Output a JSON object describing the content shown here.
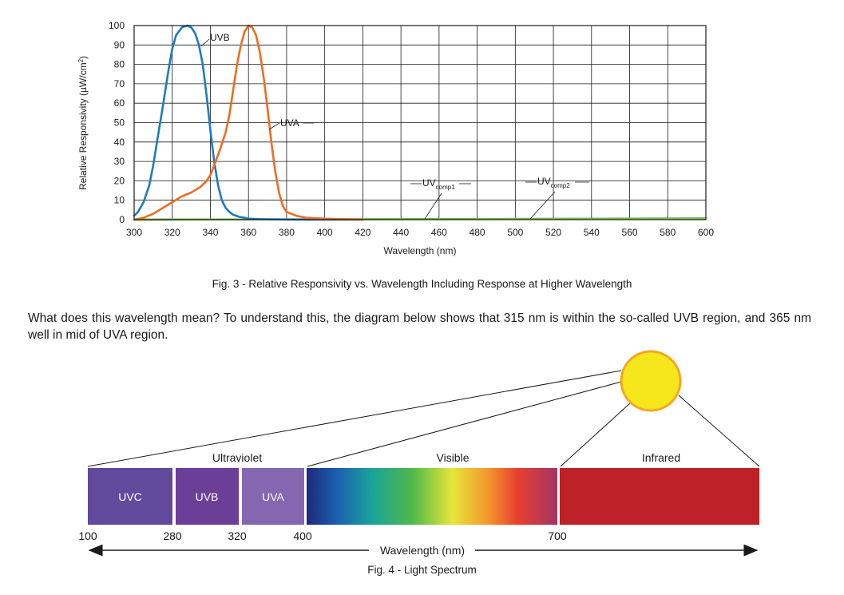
{
  "chart_data": {
    "type": "line",
    "xlabel": "Wavelength (nm)",
    "ylabel_prefix": "Relative Responsivity (µW/cm",
    "ylabel_sup": "2",
    "ylabel_suffix": ")",
    "xlim": [
      300,
      600
    ],
    "ylim": [
      0,
      100
    ],
    "x_ticks": [
      300,
      320,
      340,
      360,
      380,
      400,
      420,
      440,
      460,
      480,
      500,
      520,
      540,
      560,
      580,
      600
    ],
    "y_ticks": [
      0,
      10,
      20,
      30,
      40,
      50,
      60,
      70,
      80,
      90,
      100
    ],
    "grid": true,
    "series": [
      {
        "name": "UVB",
        "color": "#1e7bc1",
        "x": [
          300,
          302,
          305,
          308,
          310,
          312,
          315,
          318,
          320,
          322,
          325,
          328,
          330,
          332,
          334,
          336,
          338,
          340,
          342,
          344,
          346,
          348,
          350,
          352,
          355,
          358,
          360,
          365,
          370,
          380,
          400,
          420
        ],
        "y": [
          2,
          4,
          9,
          18,
          28,
          40,
          58,
          77,
          88,
          95,
          99,
          100,
          99,
          96,
          90,
          80,
          64,
          46,
          30,
          18,
          10,
          6,
          4,
          2.5,
          1.5,
          1,
          0.5,
          0.3,
          0.2,
          0.1,
          0,
          0
        ]
      },
      {
        "name": "UVA",
        "color": "#ef6c22",
        "x": [
          300,
          305,
          310,
          315,
          320,
          325,
          330,
          335,
          338,
          340,
          342,
          345,
          348,
          350,
          352,
          354,
          356,
          358,
          360,
          362,
          364,
          366,
          368,
          370,
          372,
          374,
          376,
          378,
          380,
          385,
          390,
          400,
          420
        ],
        "y": [
          0,
          1,
          3,
          6,
          9,
          12,
          14,
          17,
          20,
          23,
          28,
          36,
          45,
          54,
          67,
          80,
          90,
          97,
          100,
          99,
          95,
          86,
          73,
          57,
          40,
          25,
          14,
          7,
          4,
          2,
          1,
          0.5,
          0
        ]
      },
      {
        "name": "UVcomp1",
        "color": "#2e8b3a",
        "x": [
          300,
          450,
          600
        ],
        "y": [
          0,
          0.3,
          0.6
        ]
      },
      {
        "name": "UVcomp2",
        "color": "#7cc142",
        "x": [
          300,
          450,
          600
        ],
        "y": [
          0,
          0.2,
          0.4
        ]
      }
    ],
    "annotations": [
      {
        "text": "UVB",
        "sub": ""
      },
      {
        "text": "UVA",
        "sub": ""
      },
      {
        "text": "UV",
        "sub": "comp1"
      },
      {
        "text": "UV",
        "sub": "comp2"
      }
    ]
  },
  "captions": {
    "fig3": "Fig. 3 - Relative Responsivity vs. Wavelength Including Response at Higher Wavelength",
    "fig4": "Fig. 4 - Light Spectrum"
  },
  "paragraph": "What does this wavelength mean? To understand this, the diagram below shows that 315 nm is within the so-called UVB region, and 365 nm well in mid of UVA region.",
  "spectrum": {
    "headers": {
      "ultraviolet": "Ultraviolet",
      "visible": "Visible",
      "infrared": "Infrared"
    },
    "bands": {
      "uvc": "UVC",
      "uvb": "UVB",
      "uva": "UVA"
    },
    "ticks": [
      "100",
      "280",
      "320",
      "400",
      "700"
    ],
    "axis_label": "Wavelength (nm)",
    "colors": {
      "uvc": "#614a9c",
      "uvb": "#6b3f98",
      "uva": "#8467b0",
      "infrared": "#be2128",
      "sun": "#f6e61c",
      "sun_border": "#f5a623"
    }
  }
}
